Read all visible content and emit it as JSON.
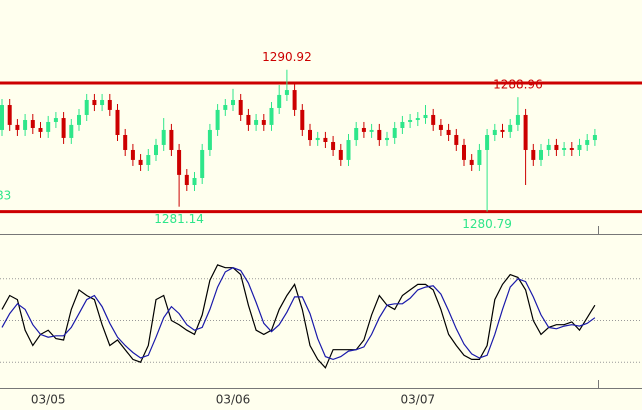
{
  "chart_data": [
    {
      "type": "candlestick",
      "ylim": [
        1279.19,
        1295.9
      ],
      "up_color": "#2ee68a",
      "down_color": "#cc0000",
      "level_color": "#cc0000",
      "levels": [
        1289.97,
        1280.79
      ],
      "labeled_highs": [
        1290.92,
        1288.96
      ],
      "labeled_lows": [
        1281.14,
        1280.79
      ],
      "high_label_color": "#cc0000",
      "low_label_color": "#2ee68a",
      "cropped_label": "83",
      "open": [
        1286.62,
        1288.4,
        1286.98,
        1286.62,
        1287.33,
        1286.76,
        1286.48,
        1287.19,
        1287.47,
        1286.05,
        1286.98,
        1287.69,
        1288.76,
        1288.4,
        1288.76,
        1288.05,
        1286.26,
        1285.19,
        1284.48,
        1284.12,
        1284.83,
        1285.55,
        1286.62,
        1285.19,
        1283.41,
        1282.69,
        1283.19,
        1285.19,
        1286.62,
        1288.05,
        1288.4,
        1288.76,
        1287.69,
        1286.98,
        1287.33,
        1286.98,
        1288.19,
        1289.12,
        1289.47,
        1288.05,
        1286.62,
        1285.9,
        1286.05,
        1285.76,
        1285.19,
        1284.48,
        1285.9,
        1286.76,
        1286.48,
        1286.62,
        1285.9,
        1286.05,
        1286.76,
        1287.19,
        1287.33,
        1287.47,
        1287.69,
        1286.98,
        1286.62,
        1286.26,
        1285.55,
        1284.48,
        1284.12,
        1285.19,
        1286.26,
        1286.62,
        1286.48,
        1286.98,
        1287.69,
        1285.19,
        1284.48,
        1285.19,
        1285.55,
        1285.19,
        1285.33,
        1285.19,
        1285.55,
        1285.9
      ],
      "high": [
        1288.83,
        1288.83,
        1287.4,
        1287.76,
        1287.76,
        1287.19,
        1287.62,
        1287.9,
        1287.9,
        1287.4,
        1288.12,
        1289.19,
        1289.19,
        1289.19,
        1289.19,
        1288.47,
        1286.69,
        1285.62,
        1284.9,
        1285.26,
        1285.98,
        1287.47,
        1287.05,
        1285.62,
        1283.83,
        1283.62,
        1285.62,
        1287.05,
        1288.47,
        1288.83,
        1289.55,
        1289.19,
        1288.12,
        1287.76,
        1287.76,
        1288.62,
        1289.83,
        1290.92,
        1289.9,
        1288.47,
        1287.05,
        1286.48,
        1286.48,
        1286.19,
        1285.62,
        1286.33,
        1287.19,
        1287.19,
        1287.05,
        1287.05,
        1286.48,
        1287.19,
        1287.62,
        1287.76,
        1287.9,
        1288.4,
        1288.12,
        1287.4,
        1287.05,
        1286.69,
        1285.98,
        1284.9,
        1285.62,
        1286.69,
        1287.05,
        1287.05,
        1287.4,
        1288.96,
        1288.12,
        1285.62,
        1285.62,
        1285.98,
        1285.98,
        1285.76,
        1285.76,
        1285.98,
        1286.33,
        1286.69
      ],
      "low": [
        1286.19,
        1286.55,
        1286.19,
        1286.19,
        1286.33,
        1286.05,
        1286.05,
        1286.76,
        1285.62,
        1285.62,
        1286.55,
        1287.26,
        1287.97,
        1287.97,
        1287.62,
        1285.83,
        1284.76,
        1284.05,
        1283.69,
        1283.69,
        1284.4,
        1285.12,
        1284.76,
        1281.14,
        1282.26,
        1282.26,
        1282.76,
        1284.76,
        1286.19,
        1287.62,
        1287.97,
        1287.26,
        1286.55,
        1286.55,
        1286.55,
        1286.55,
        1287.76,
        1288.69,
        1287.62,
        1286.19,
        1285.48,
        1285.48,
        1285.33,
        1284.76,
        1284.05,
        1284.05,
        1285.48,
        1286.05,
        1286.05,
        1285.48,
        1285.48,
        1285.62,
        1286.33,
        1286.76,
        1286.9,
        1287.05,
        1286.55,
        1286.19,
        1285.83,
        1285.12,
        1284.05,
        1283.69,
        1283.69,
        1280.79,
        1285.83,
        1286.05,
        1286.05,
        1286.55,
        1282.69,
        1284.05,
        1284.05,
        1284.76,
        1284.76,
        1284.76,
        1284.76,
        1284.76,
        1285.12,
        1285.48
      ],
      "close": [
        1288.4,
        1286.98,
        1286.62,
        1287.33,
        1286.76,
        1286.48,
        1287.19,
        1287.47,
        1286.05,
        1286.98,
        1287.69,
        1288.76,
        1288.4,
        1288.76,
        1288.05,
        1286.26,
        1285.19,
        1284.48,
        1284.12,
        1284.83,
        1285.55,
        1286.62,
        1285.19,
        1283.41,
        1282.69,
        1283.19,
        1285.19,
        1286.62,
        1288.05,
        1288.4,
        1288.76,
        1287.69,
        1286.98,
        1287.33,
        1286.98,
        1288.19,
        1289.12,
        1289.47,
        1288.05,
        1286.62,
        1285.9,
        1286.05,
        1285.76,
        1285.19,
        1284.48,
        1285.9,
        1286.76,
        1286.48,
        1286.62,
        1285.9,
        1286.05,
        1286.76,
        1287.19,
        1287.33,
        1287.47,
        1287.69,
        1286.98,
        1286.62,
        1286.26,
        1285.55,
        1284.48,
        1284.12,
        1285.19,
        1286.26,
        1286.62,
        1286.48,
        1286.98,
        1287.69,
        1285.19,
        1284.48,
        1285.19,
        1285.55,
        1285.19,
        1285.33,
        1285.19,
        1285.55,
        1285.9,
        1286.26
      ]
    },
    {
      "type": "line",
      "ylim": [
        0,
        100
      ],
      "grid_levels": [
        20,
        50,
        80
      ],
      "categories": [
        null,
        null,
        null,
        null,
        null,
        null,
        "03/05",
        null,
        null,
        null,
        null,
        null,
        null,
        null,
        null,
        null,
        null,
        null,
        null,
        null,
        null,
        null,
        null,
        null,
        null,
        null,
        null,
        null,
        null,
        null,
        "03/06",
        null,
        null,
        null,
        null,
        null,
        null,
        null,
        null,
        null,
        null,
        null,
        null,
        null,
        null,
        null,
        null,
        null,
        null,
        null,
        null,
        null,
        null,
        null,
        "03/07",
        null,
        null,
        null,
        null,
        null,
        null,
        null,
        null,
        null,
        null,
        null,
        null,
        null,
        null,
        null,
        null,
        null,
        null,
        null,
        null,
        null,
        null,
        null
      ],
      "series": [
        {
          "color": "#000000",
          "values": [
            58,
            68,
            65,
            43,
            32,
            40,
            43,
            37,
            36,
            58,
            72,
            68,
            65,
            47,
            32,
            36,
            29,
            22,
            20,
            32,
            65,
            68,
            50,
            47,
            43,
            40,
            54,
            79,
            90,
            88,
            88,
            83,
            61,
            43,
            40,
            43,
            58,
            68,
            76,
            58,
            32,
            22,
            16,
            29,
            29,
            29,
            29,
            36,
            54,
            68,
            61,
            58,
            68,
            72,
            76,
            76,
            72,
            58,
            40,
            32,
            25,
            22,
            22,
            32,
            65,
            76,
            83,
            81,
            72,
            50,
            40,
            45,
            47,
            47,
            49,
            43,
            52,
            61
          ]
        },
        {
          "color": "#1a1aaa",
          "values": [
            45,
            55,
            62,
            58,
            47,
            40,
            38,
            39,
            39,
            45,
            55,
            65,
            68,
            60,
            48,
            38,
            32,
            27,
            23,
            25,
            38,
            52,
            60,
            55,
            47,
            43,
            45,
            58,
            74,
            85,
            88,
            86,
            77,
            63,
            48,
            42,
            47,
            56,
            67,
            67,
            55,
            37,
            24,
            22,
            24,
            28,
            29,
            31,
            40,
            52,
            61,
            62,
            62,
            66,
            72,
            74,
            75,
            69,
            57,
            44,
            33,
            26,
            23,
            25,
            40,
            58,
            74,
            80,
            78,
            67,
            54,
            45,
            44,
            46,
            47,
            46,
            48,
            52
          ]
        }
      ]
    }
  ]
}
